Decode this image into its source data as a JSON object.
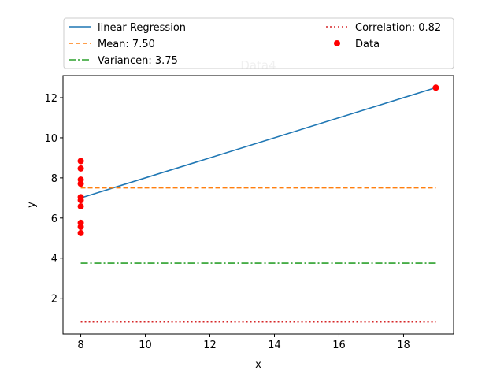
{
  "chart_data": {
    "type": "scatter",
    "title": "Data4",
    "xlabel": "x",
    "ylabel": "y",
    "xlim": [
      7.45,
      19.55
    ],
    "ylim": [
      0.22,
      13.1
    ],
    "x_ticks": [
      8,
      10,
      12,
      14,
      16,
      18
    ],
    "y_ticks": [
      2,
      4,
      6,
      8,
      10,
      12
    ],
    "grid": false,
    "legend_placement": "top, above plot, two columns",
    "series": [
      {
        "name": "linear Regression",
        "kind": "line",
        "style": "solid",
        "color": "#1f77b4",
        "x": [
          8,
          19
        ],
        "y": [
          7.0,
          12.5
        ]
      },
      {
        "name": "Mean: 7.50",
        "kind": "line",
        "style": "dashed",
        "color": "#ff7f0e",
        "x": [
          8,
          19
        ],
        "y": [
          7.5,
          7.5
        ]
      },
      {
        "name": "Variancen: 3.75",
        "kind": "line",
        "style": "dashdot",
        "color": "#2ca02c",
        "x": [
          8,
          19
        ],
        "y": [
          3.75,
          3.75
        ]
      },
      {
        "name": "Correlation: 0.82",
        "kind": "line",
        "style": "dotted",
        "color": "#d62728",
        "x": [
          8,
          19
        ],
        "y": [
          0.82,
          0.82
        ]
      },
      {
        "name": "Data",
        "kind": "scatter",
        "color": "#ff0000",
        "x": [
          8,
          8,
          8,
          8,
          8,
          8,
          8,
          8,
          8,
          8,
          19
        ],
        "y": [
          6.58,
          5.76,
          7.71,
          8.84,
          8.47,
          7.04,
          5.25,
          5.56,
          7.91,
          6.89,
          12.5
        ]
      }
    ]
  }
}
